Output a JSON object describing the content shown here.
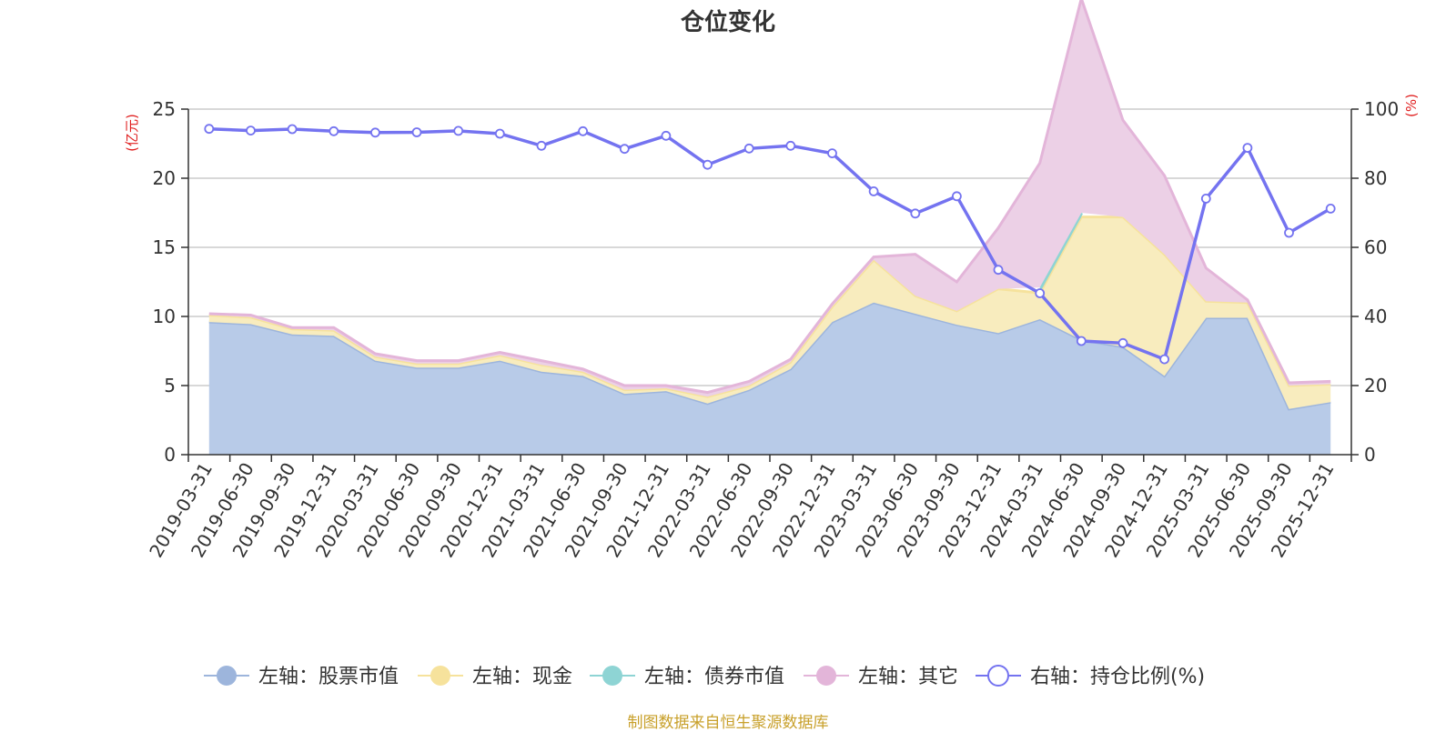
{
  "colors": {
    "stock": "#9db5dc",
    "stock_fill": "#b8cbe8",
    "cash": "#f6e29c",
    "cash_fill": "#f8ecbe",
    "bond": "#8ed4d4",
    "other": "#e3b5d9",
    "other_fill": "#ecd0e6",
    "ratio": "#7473f0",
    "axis_unit": "#e02020",
    "footer": "#c8a02a"
  },
  "chart_data": {
    "type": "area",
    "title": "仓位变化",
    "y_left_label": "(亿元)",
    "y_right_label": "(%)",
    "y_left_range": [
      0,
      25
    ],
    "y_right_range": [
      0,
      100
    ],
    "y_left_ticks": [
      "0",
      "5",
      "10",
      "15",
      "20",
      "25"
    ],
    "y_right_ticks": [
      "0",
      "20",
      "40",
      "60",
      "80",
      "100"
    ],
    "grid": true,
    "legend_position": "bottom",
    "x": [
      "2019-03-31",
      "2019-06-30",
      "2019-09-30",
      "2019-12-31",
      "2020-03-31",
      "2020-06-30",
      "2020-09-30",
      "2020-12-31",
      "2021-03-31",
      "2021-06-30",
      "2021-09-30",
      "2021-12-31",
      "2022-03-31",
      "2022-06-30",
      "2022-09-30",
      "2022-12-31",
      "2023-03-31",
      "2023-06-30",
      "2023-09-30",
      "2023-12-31",
      "2024-03-31",
      "2024-06-30",
      "2024-09-30",
      "2024-12-31",
      "2025-03-31",
      "2025-06-30",
      "2025-09-30",
      "2025-12-31"
    ],
    "series": [
      {
        "name": "左轴：股票市值",
        "axis": "left",
        "stack": true,
        "values": [
          9.6,
          9.45,
          8.7,
          8.6,
          6.8,
          6.3,
          6.3,
          6.8,
          6.0,
          5.7,
          4.4,
          4.6,
          3.7,
          4.7,
          6.2,
          9.6,
          11.0,
          10.2,
          9.4,
          8.8,
          9.8,
          8.3,
          7.8,
          5.7,
          9.9,
          9.9,
          3.3,
          3.8
        ]
      },
      {
        "name": "左轴：现金",
        "axis": "left",
        "stack": true,
        "values": [
          0.5,
          0.5,
          0.4,
          0.4,
          0.3,
          0.3,
          0.3,
          0.4,
          0.5,
          0.3,
          0.3,
          0.2,
          0.5,
          0.3,
          0.5,
          1.1,
          3.1,
          1.3,
          1.0,
          3.2,
          1.9,
          8.9,
          9.4,
          8.8,
          1.2,
          1.1,
          1.7,
          1.3
        ]
      },
      {
        "name": "左轴：债券市值",
        "axis": "left",
        "stack": true,
        "values": [
          null,
          null,
          null,
          null,
          null,
          null,
          null,
          null,
          null,
          null,
          null,
          null,
          null,
          null,
          null,
          null,
          null,
          null,
          null,
          null,
          0.4,
          0.3,
          null,
          null,
          null,
          null,
          null,
          null
        ]
      },
      {
        "name": "左轴：其它",
        "axis": "left",
        "stack": true,
        "values": [
          0.1,
          0.15,
          0.1,
          0.2,
          0.2,
          0.2,
          0.2,
          0.2,
          0.3,
          0.2,
          0.3,
          0.2,
          0.3,
          0.3,
          0.2,
          0.2,
          0.2,
          3.0,
          2.1,
          4.4,
          9.0,
          15.5,
          7.0,
          5.7,
          2.4,
          0.2,
          0.2,
          0.2
        ]
      },
      {
        "name": "右轴：持仓比例(%)",
        "axis": "right",
        "stack": false,
        "values": [
          94.3,
          93.8,
          94.2,
          93.6,
          93.2,
          93.3,
          93.7,
          92.9,
          89.4,
          93.6,
          88.5,
          92.3,
          83.9,
          88.6,
          89.4,
          87.2,
          76.2,
          69.8,
          74.8,
          53.5,
          46.7,
          32.9,
          32.3,
          27.6,
          74.1,
          88.8,
          64.2,
          71.2
        ]
      }
    ]
  },
  "footer": "制图数据来自恒生聚源数据库"
}
